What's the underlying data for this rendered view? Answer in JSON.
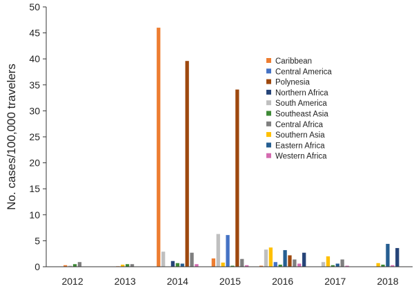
{
  "chart_data": {
    "type": "bar",
    "title": "",
    "xlabel": "",
    "ylabel": "No. cases/100,000 travelers",
    "ylim": [
      0,
      50
    ],
    "yticks": [
      0,
      5,
      10,
      15,
      20,
      25,
      30,
      35,
      40,
      45,
      50
    ],
    "grid": false,
    "legend_position": "right",
    "categories": [
      "2012",
      "2013",
      "2014",
      "2015",
      "2016",
      "2017",
      "2018"
    ],
    "series": [
      {
        "name": "Caribbean",
        "color": "#ED7D31",
        "values": [
          0.3,
          0.1,
          46.0,
          1.6,
          0.2,
          0.1,
          0.0
        ]
      },
      {
        "name": "Central America",
        "color": "#4472C4",
        "values": [
          0.0,
          0.0,
          0.0,
          6.1,
          0.9,
          0.2,
          0.0
        ]
      },
      {
        "name": "Polynesia",
        "color": "#9E480E",
        "values": [
          0.0,
          0.0,
          39.6,
          34.1,
          2.2,
          0.0,
          0.0
        ]
      },
      {
        "name": "Northern Africa",
        "color": "#264478",
        "values": [
          0.0,
          0.0,
          1.1,
          0.0,
          2.7,
          0.0,
          3.6
        ]
      },
      {
        "name": "South America",
        "color": "#BFBFBF",
        "values": [
          0.2,
          0.0,
          2.9,
          6.3,
          3.3,
          0.9,
          0.2
        ]
      },
      {
        "name": "Southeast Asia",
        "color": "#3E8A36",
        "values": [
          0.5,
          0.5,
          0.7,
          0.2,
          0.4,
          0.3,
          0.4
        ]
      },
      {
        "name": "Central Africa",
        "color": "#7F7F7F",
        "values": [
          0.9,
          0.5,
          2.7,
          1.5,
          1.4,
          1.4,
          0.1
        ]
      },
      {
        "name": "Southern Asia",
        "color": "#FFC000",
        "values": [
          0.4,
          0.4,
          0.2,
          0.8,
          3.7,
          2.0,
          0.7
        ]
      },
      {
        "name": "Eastern Africa",
        "color": "#255E91",
        "values": [
          0.0,
          0.0,
          0.6,
          0.0,
          3.2,
          0.6,
          4.4
        ]
      },
      {
        "name": "Western Africa",
        "color": "#D46BB0",
        "values": [
          0.0,
          0.0,
          0.5,
          0.3,
          0.6,
          0.2,
          0.3
        ]
      }
    ],
    "bar_order": [
      [
        "Caribbean",
        "South America",
        "Southeast Asia",
        "Central Africa"
      ],
      [
        "Caribbean",
        "Southern Asia",
        "Southeast Asia",
        "Central Africa"
      ],
      [
        "Caribbean",
        "South America",
        "Central America",
        "Northern Africa",
        "Southeast Asia",
        "Eastern Africa",
        "Polynesia",
        "Central Africa",
        "Western Africa"
      ],
      [
        "Caribbean",
        "South America",
        "Southern Asia",
        "Central America",
        "Southeast Asia",
        "Polynesia",
        "Central Africa",
        "Western Africa"
      ],
      [
        "Caribbean",
        "South America",
        "Southern Asia",
        "Central America",
        "Southeast Asia",
        "Eastern Africa",
        "Polynesia",
        "Central Africa",
        "Western Africa",
        "Northern Africa"
      ],
      [
        "South America",
        "Southern Asia",
        "Southeast Asia",
        "Eastern Africa",
        "Central Africa",
        "Western Africa"
      ],
      [
        "Southern Asia",
        "Southeast Asia",
        "Eastern Africa",
        "Western Africa",
        "Northern Africa"
      ]
    ]
  }
}
